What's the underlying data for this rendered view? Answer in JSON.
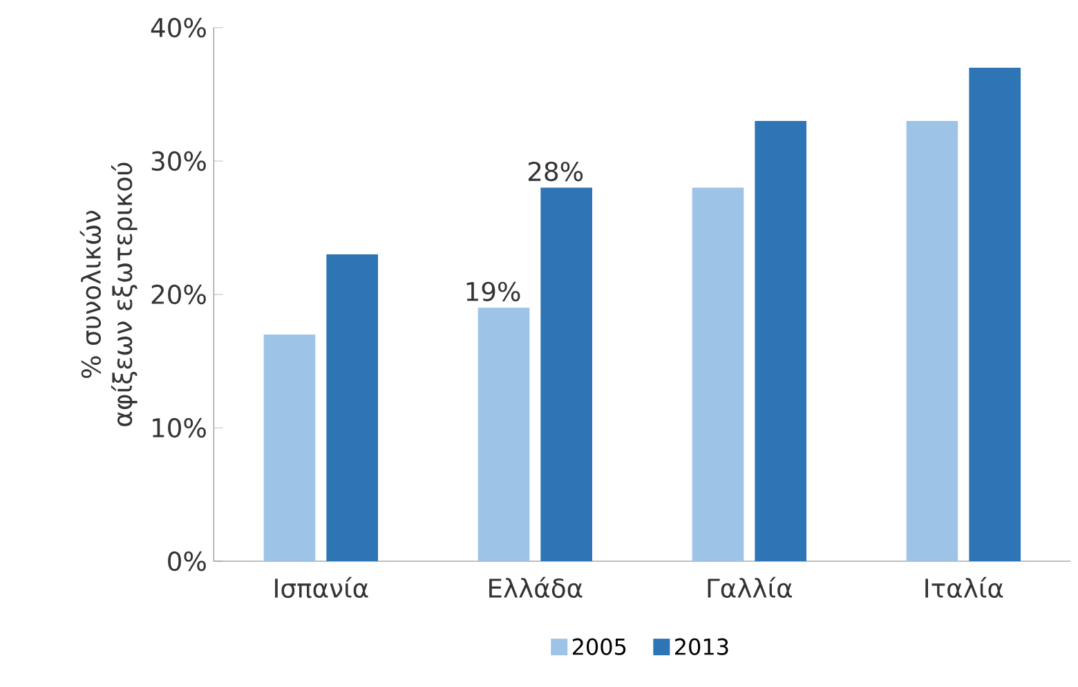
{
  "chart_data": {
    "type": "bar",
    "ylabel": "% συνολικών αφίξεων εξωτερικού",
    "categories": [
      "Ισπανία",
      "Ελλάδα",
      "Γαλλία",
      "Ιταλία"
    ],
    "series": [
      {
        "name": "2005",
        "color": "#9dc3e6",
        "values": [
          17,
          19,
          28,
          33
        ],
        "value_labels": [
          null,
          "19%",
          null,
          null
        ]
      },
      {
        "name": "2013",
        "color": "#2e75b6",
        "values": [
          23,
          28,
          33,
          37
        ],
        "value_labels": [
          null,
          "28%",
          null,
          null
        ]
      }
    ],
    "ylim": [
      0,
      40
    ],
    "yticks": [
      {
        "value": 0,
        "label": "0%"
      },
      {
        "value": 10,
        "label": "10%"
      },
      {
        "value": 20,
        "label": "20%"
      },
      {
        "value": 30,
        "label": "30%"
      },
      {
        "value": 40,
        "label": "40%"
      }
    ],
    "grid": false,
    "legend": "bottom"
  }
}
